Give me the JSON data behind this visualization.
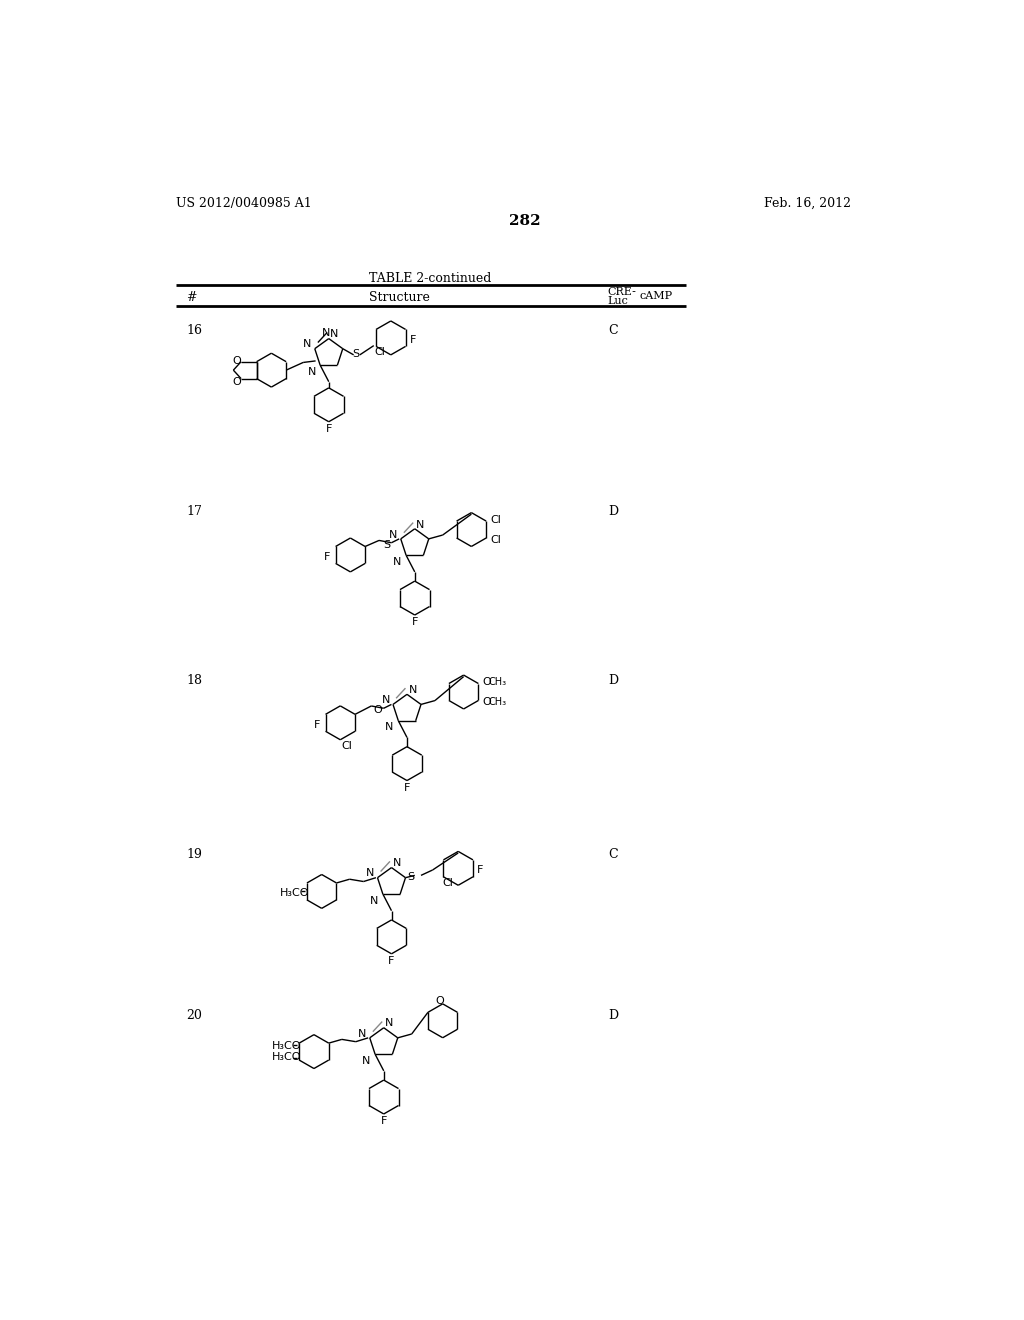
{
  "page_number": "282",
  "patent_number": "US 2012/0040985 A1",
  "patent_date": "Feb. 16, 2012",
  "table_title": "TABLE 2-continued",
  "background_color": "#ffffff",
  "text_color": "#000000",
  "line_color": "#000000"
}
